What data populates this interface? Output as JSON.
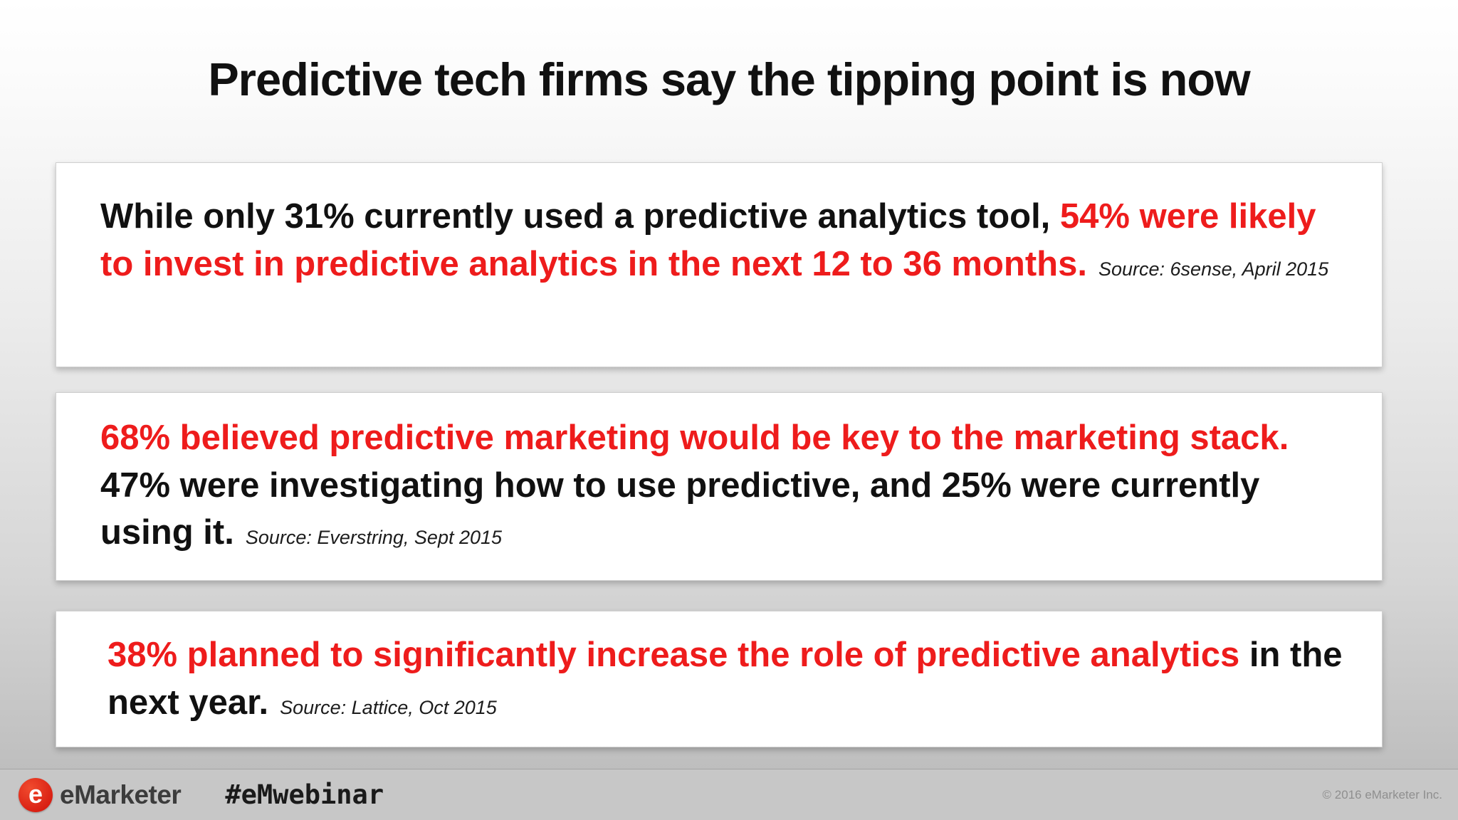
{
  "slide": {
    "title": "Predictive tech firms say the tipping point is now"
  },
  "cards": [
    {
      "segments": [
        {
          "text": "While only 31% currently used a predictive analytics tool, ",
          "color": "black"
        },
        {
          "text": "54% were likely to invest in predictive analytics in the next 12 to 36 months.",
          "color": "red"
        }
      ],
      "source": "Source: 6sense, April 2015"
    },
    {
      "segments": [
        {
          "text": "68% believed predictive marketing would be key to the marketing stack. ",
          "color": "red"
        },
        {
          "text": "47% were investigating how to use predictive, and 25% were currently using it.",
          "color": "black"
        }
      ],
      "source": "Source: Everstring, Sept 2015"
    },
    {
      "segments": [
        {
          "text": "38% planned to significantly increase the role of predictive analytics ",
          "color": "red"
        },
        {
          "text": "in the next year.",
          "color": "black"
        }
      ],
      "source": "Source: Lattice, Oct 2015"
    }
  ],
  "footer": {
    "logo_glyph": "e",
    "logo_text": "eMarketer",
    "hashtag": "#eMwebinar",
    "copyright": "© 2016 eMarketer Inc."
  },
  "colors": {
    "accent_red": "#ee1c1c",
    "text_black": "#111111",
    "logo_red": "#d81e12",
    "footer_gray": "#c7c7c7"
  }
}
